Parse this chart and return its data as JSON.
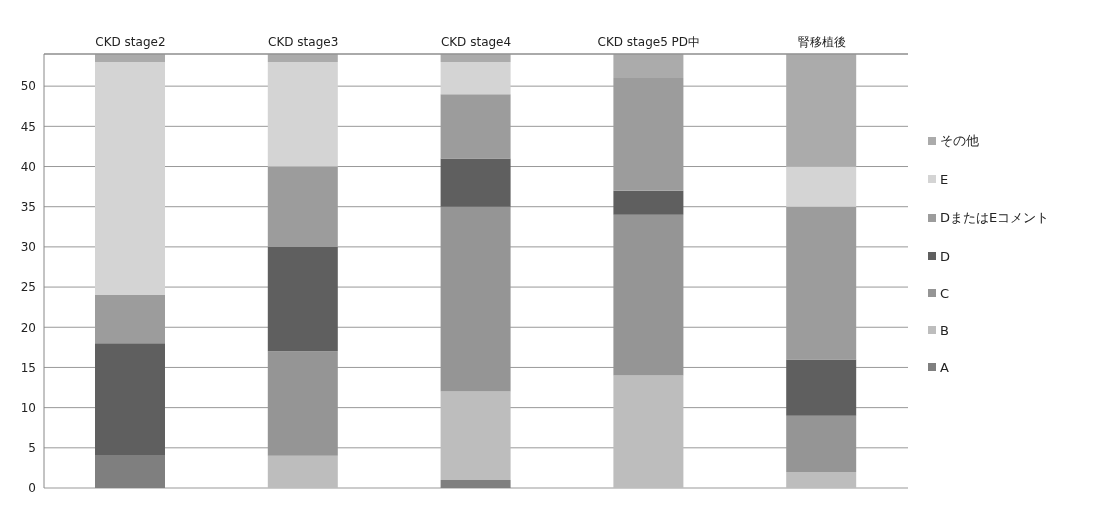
{
  "chart_data": {
    "type": "bar",
    "stacked": true,
    "categories": [
      "CKD stage2",
      "CKD stage3",
      "CKD stage4",
      "CKD stage5 PD中",
      "腎移植後"
    ],
    "series": [
      {
        "name": "A",
        "color": "#7f7f7f",
        "values": [
          4,
          0,
          1,
          0,
          0
        ]
      },
      {
        "name": "B",
        "color": "#bdbdbd",
        "values": [
          0,
          4,
          11,
          14,
          2
        ]
      },
      {
        "name": "C",
        "color": "#959595",
        "values": [
          0,
          13,
          23,
          20,
          7
        ]
      },
      {
        "name": "D",
        "color": "#5f5f5f",
        "values": [
          14,
          13,
          6,
          3,
          7
        ]
      },
      {
        "name": "DまたはEコメント",
        "color": "#9c9c9c",
        "values": [
          6,
          10,
          8,
          14,
          19
        ]
      },
      {
        "name": "E",
        "color": "#d4d4d4",
        "values": [
          29,
          13,
          4,
          0,
          5
        ]
      },
      {
        "name": "その他",
        "color": "#ababab",
        "values": [
          1,
          1,
          1,
          3,
          14
        ]
      }
    ],
    "ylim": [
      0,
      54
    ],
    "yticks": [
      0,
      5,
      10,
      15,
      20,
      25,
      30,
      35,
      40,
      45,
      50
    ],
    "grid": "y",
    "legend": "right"
  }
}
